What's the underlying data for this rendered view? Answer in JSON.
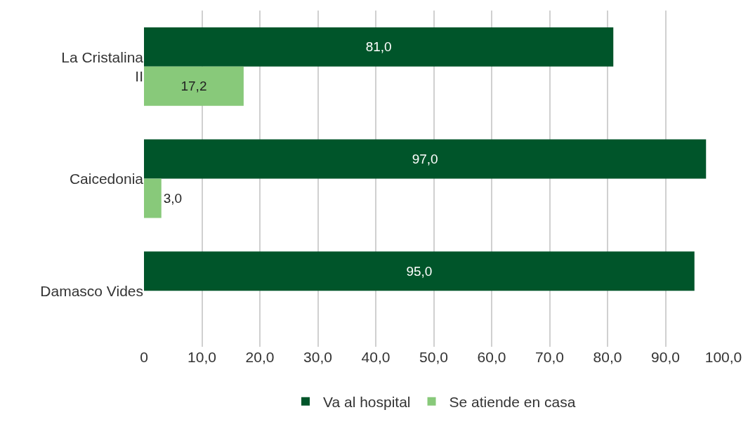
{
  "chart_data": {
    "type": "bar",
    "orientation": "horizontal",
    "categories": [
      "La Cristalina II",
      "Caicedonia",
      "Damasco Vides"
    ],
    "series": [
      {
        "name": "Va al hospital",
        "color": "#00552a",
        "values": [
          81,
          97,
          95
        ],
        "value_labels": [
          "81,0",
          "97,0",
          "95,0"
        ]
      },
      {
        "name": "Se atiende en casa",
        "color": "#88c97a",
        "values": [
          17.2,
          3,
          null
        ],
        "value_labels": [
          "17,2",
          "3,0",
          null
        ]
      }
    ],
    "xlim": [
      0,
      100
    ],
    "xticks": [
      0,
      {
        "value": 10,
        "label": "10,0"
      },
      {
        "value": 20,
        "label": "20,0"
      },
      {
        "value": 30,
        "label": "30,0"
      },
      {
        "value": 40,
        "label": "40,0"
      },
      {
        "value": 50,
        "label": "50,0"
      },
      {
        "value": 60,
        "label": "60,0"
      },
      {
        "value": 70,
        "label": "70,0"
      },
      {
        "value": 80,
        "label": "80,0"
      },
      {
        "value": 90,
        "label": "90,0"
      },
      {
        "value": 100,
        "label": "100,0"
      }
    ],
    "grid": "x",
    "legend": "bottom"
  }
}
